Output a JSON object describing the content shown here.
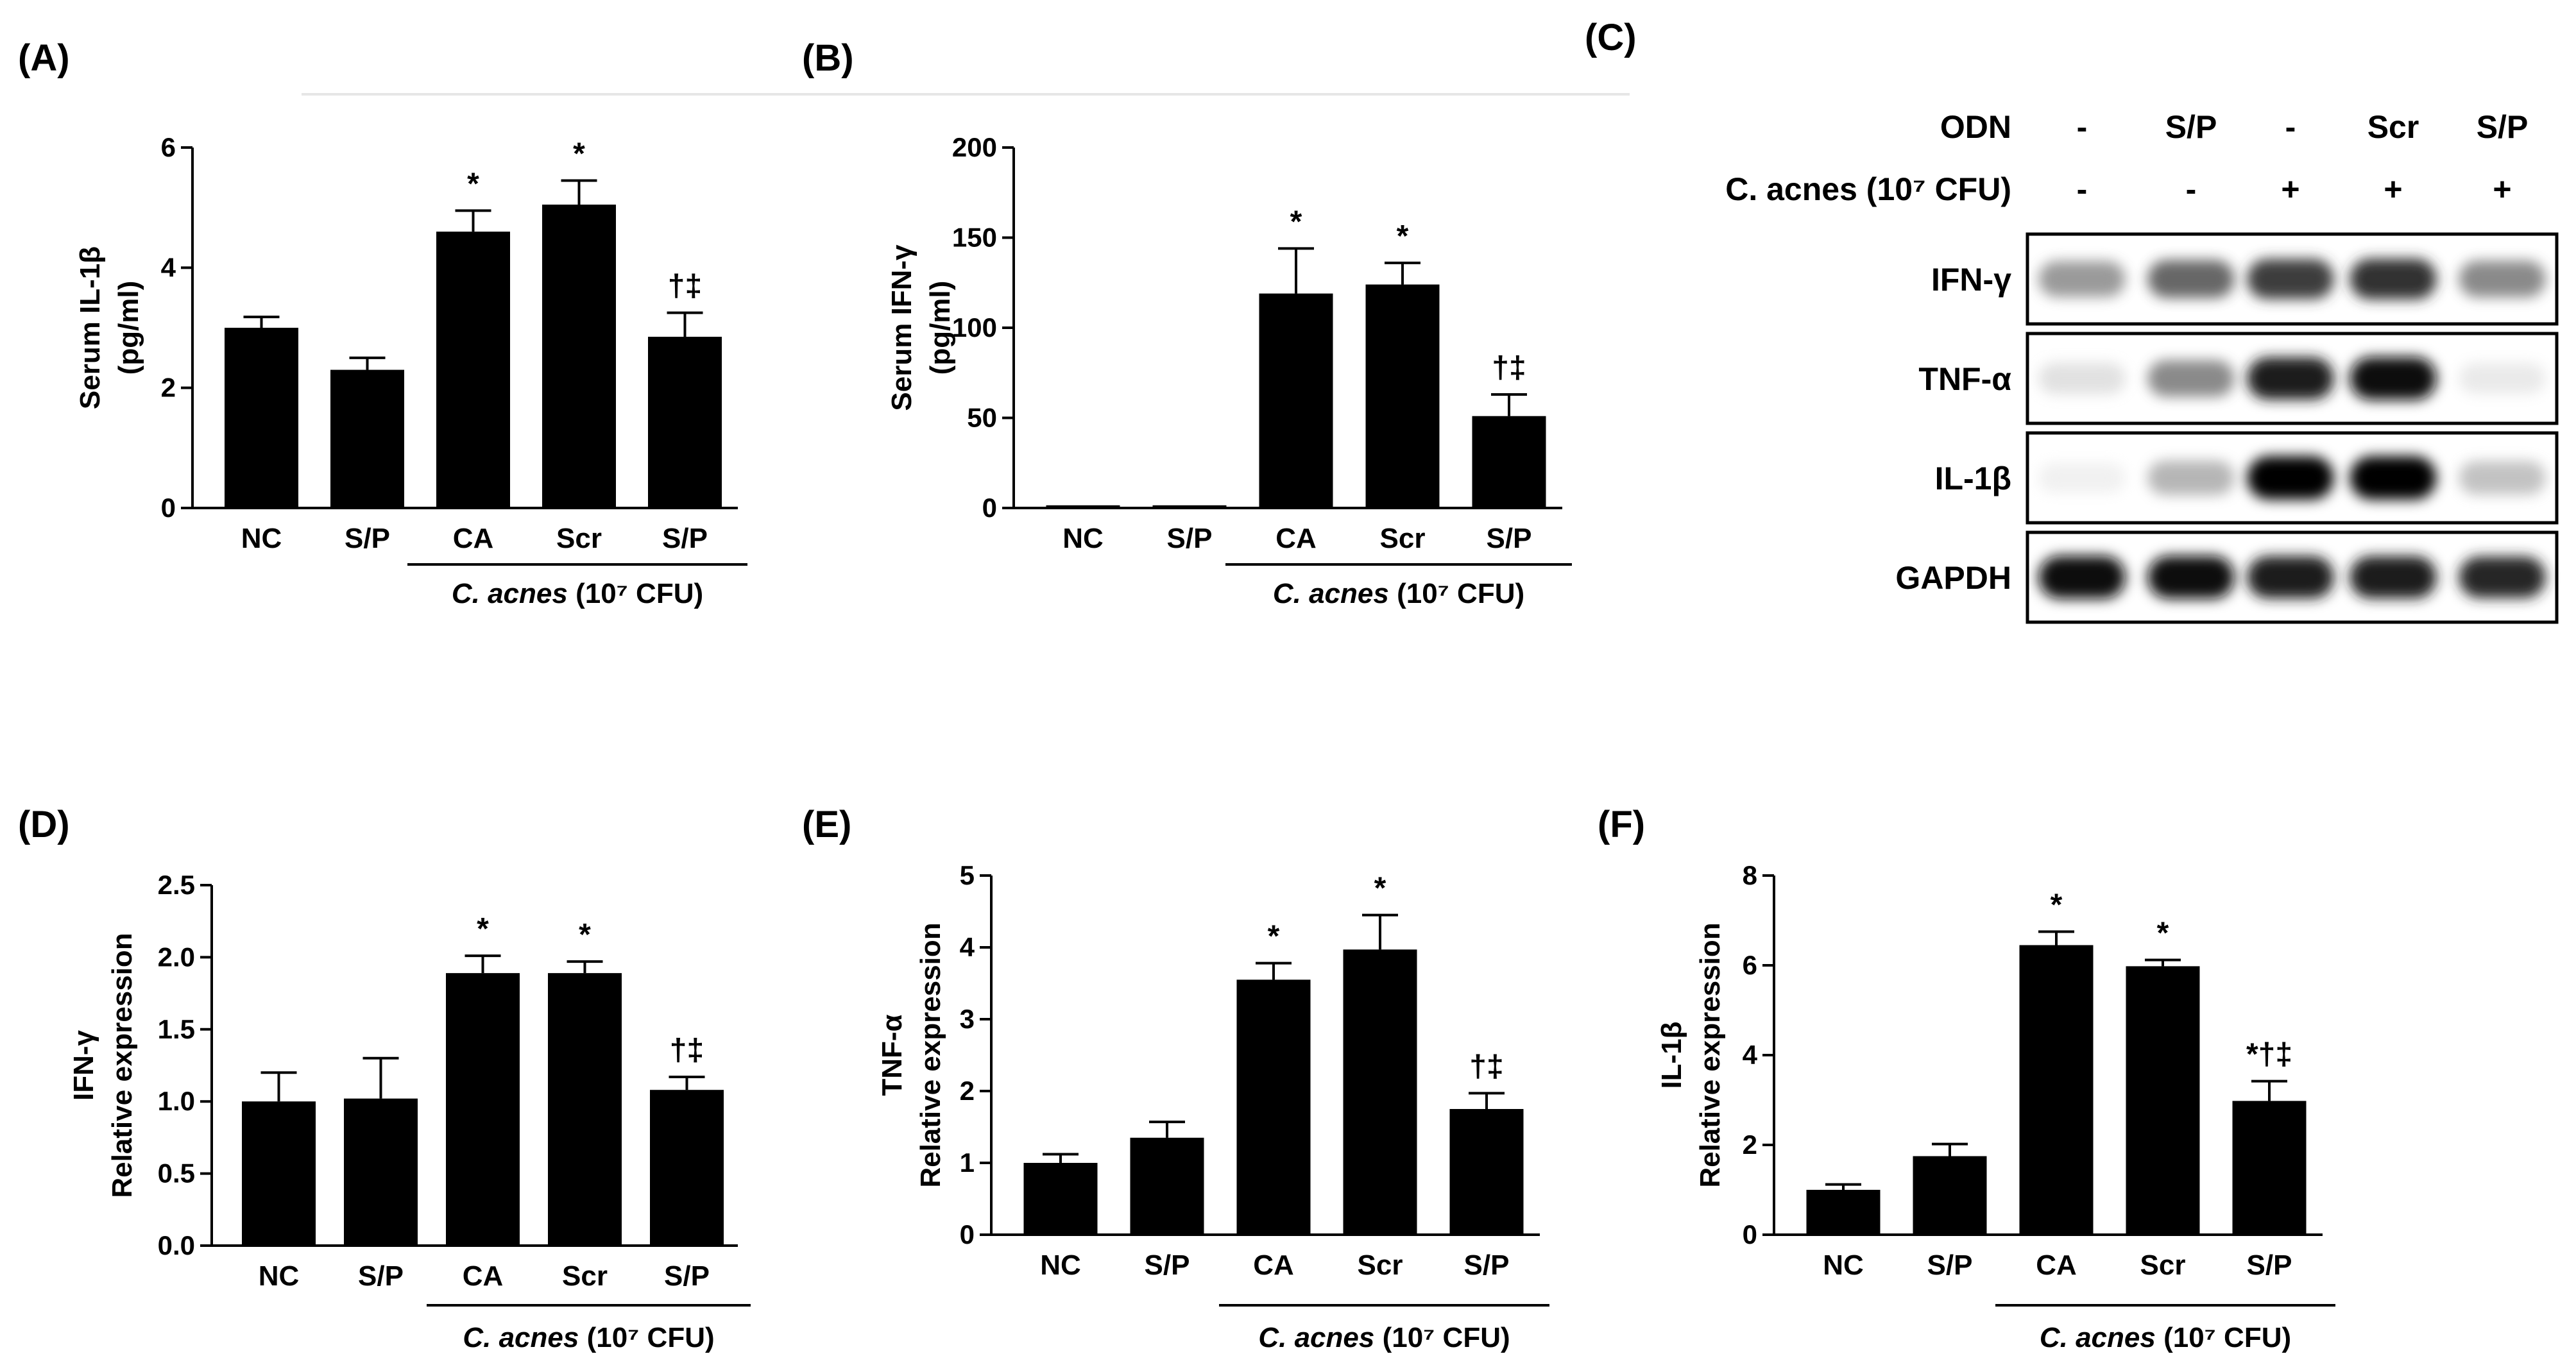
{
  "chart_data": [
    {
      "type": "bar",
      "panel": "(A)",
      "ylabel": "Serum IL-1β",
      "ylabel_unit": "(pg/ml)",
      "ylim": [
        0,
        6
      ],
      "yticks": [
        "0",
        "2",
        "4",
        "6"
      ],
      "categories": [
        "NC",
        "S/P",
        "CA",
        "Scr",
        "S/P"
      ],
      "values": [
        3.0,
        2.3,
        4.6,
        5.05,
        2.85
      ],
      "errors": [
        0.18,
        0.2,
        0.35,
        0.4,
        0.4
      ],
      "annotations": [
        "",
        "",
        "*",
        "*",
        "†‡"
      ],
      "group_label": "C. acnes",
      "group_label_suffix": "(10⁷ CFU)"
    },
    {
      "type": "bar",
      "panel": "(B)",
      "ylabel": "Serum IFN-γ",
      "ylabel_unit": "(pg/ml)",
      "ylim": [
        0,
        200
      ],
      "yticks": [
        "0",
        "50",
        "100",
        "150",
        "200"
      ],
      "categories": [
        "NC",
        "S/P",
        "CA",
        "Scr",
        "S/P"
      ],
      "values": [
        1.5,
        1.5,
        119,
        124,
        51
      ],
      "errors": [
        0,
        0,
        25,
        12,
        12
      ],
      "annotations": [
        "",
        "",
        "*",
        "*",
        "†‡"
      ],
      "group_label": "C. acnes",
      "group_label_suffix": "(10⁷ CFU)"
    },
    {
      "type": "bar",
      "panel": "(D)",
      "ylabel": "IFN-γ",
      "ylabel_unit": "Relative expression",
      "ylim": [
        0,
        2.5
      ],
      "yticks": [
        "0.0",
        "0.5",
        "1.0",
        "1.5",
        "2.0",
        "2.5"
      ],
      "categories": [
        "NC",
        "S/P",
        "CA",
        "Scr",
        "S/P"
      ],
      "values": [
        1.0,
        1.02,
        1.89,
        1.89,
        1.08
      ],
      "errors": [
        0.2,
        0.28,
        0.12,
        0.08,
        0.09
      ],
      "annotations": [
        "",
        "",
        "*",
        "*",
        "†‡"
      ],
      "group_label": "C. acnes",
      "group_label_suffix": "(10⁷ CFU)"
    },
    {
      "type": "bar",
      "panel": "(E)",
      "ylabel": "TNF-α",
      "ylabel_unit": "Relative expression",
      "ylim": [
        0,
        5
      ],
      "yticks": [
        "0",
        "1",
        "2",
        "3",
        "4",
        "5"
      ],
      "categories": [
        "NC",
        "S/P",
        "CA",
        "Scr",
        "S/P"
      ],
      "values": [
        1.0,
        1.35,
        3.55,
        3.97,
        1.75
      ],
      "errors": [
        0.12,
        0.22,
        0.23,
        0.48,
        0.22
      ],
      "annotations": [
        "",
        "",
        "*",
        "*",
        "†‡"
      ],
      "group_label": "C. acnes",
      "group_label_suffix": "(10⁷ CFU)"
    },
    {
      "type": "bar",
      "panel": "(F)",
      "ylabel": "IL-1β",
      "ylabel_unit": "Relative expression",
      "ylim": [
        0,
        8
      ],
      "yticks": [
        "0",
        "2",
        "4",
        "6",
        "8"
      ],
      "categories": [
        "NC",
        "S/P",
        "CA",
        "Scr",
        "S/P"
      ],
      "values": [
        1.0,
        1.75,
        6.45,
        5.98,
        2.98
      ],
      "errors": [
        0.12,
        0.27,
        0.3,
        0.14,
        0.44
      ],
      "annotations": [
        "",
        "",
        "*",
        "*",
        "*†‡"
      ],
      "group_label": "C. acnes",
      "group_label_suffix": "(10⁷ CFU)"
    }
  ],
  "western_blot": {
    "panel": "(C)",
    "rows": [
      {
        "label": "ODN",
        "values": [
          "-",
          "S/P",
          "-",
          "Scr",
          "S/P"
        ]
      },
      {
        "label": "C. acnes (10⁷ CFU)",
        "values": [
          "-",
          "-",
          "+",
          "+",
          "+"
        ]
      }
    ],
    "blots": [
      {
        "label": "IFN-γ",
        "intensities": [
          0.45,
          0.6,
          0.75,
          0.8,
          0.5
        ]
      },
      {
        "label": "TNF-α",
        "intensities": [
          0.15,
          0.5,
          0.9,
          0.95,
          0.1
        ]
      },
      {
        "label": "IL-1β",
        "intensities": [
          0.05,
          0.35,
          1.0,
          1.0,
          0.3
        ]
      },
      {
        "label": "GAPDH",
        "intensities": [
          0.95,
          0.95,
          0.9,
          0.9,
          0.85
        ]
      }
    ]
  }
}
